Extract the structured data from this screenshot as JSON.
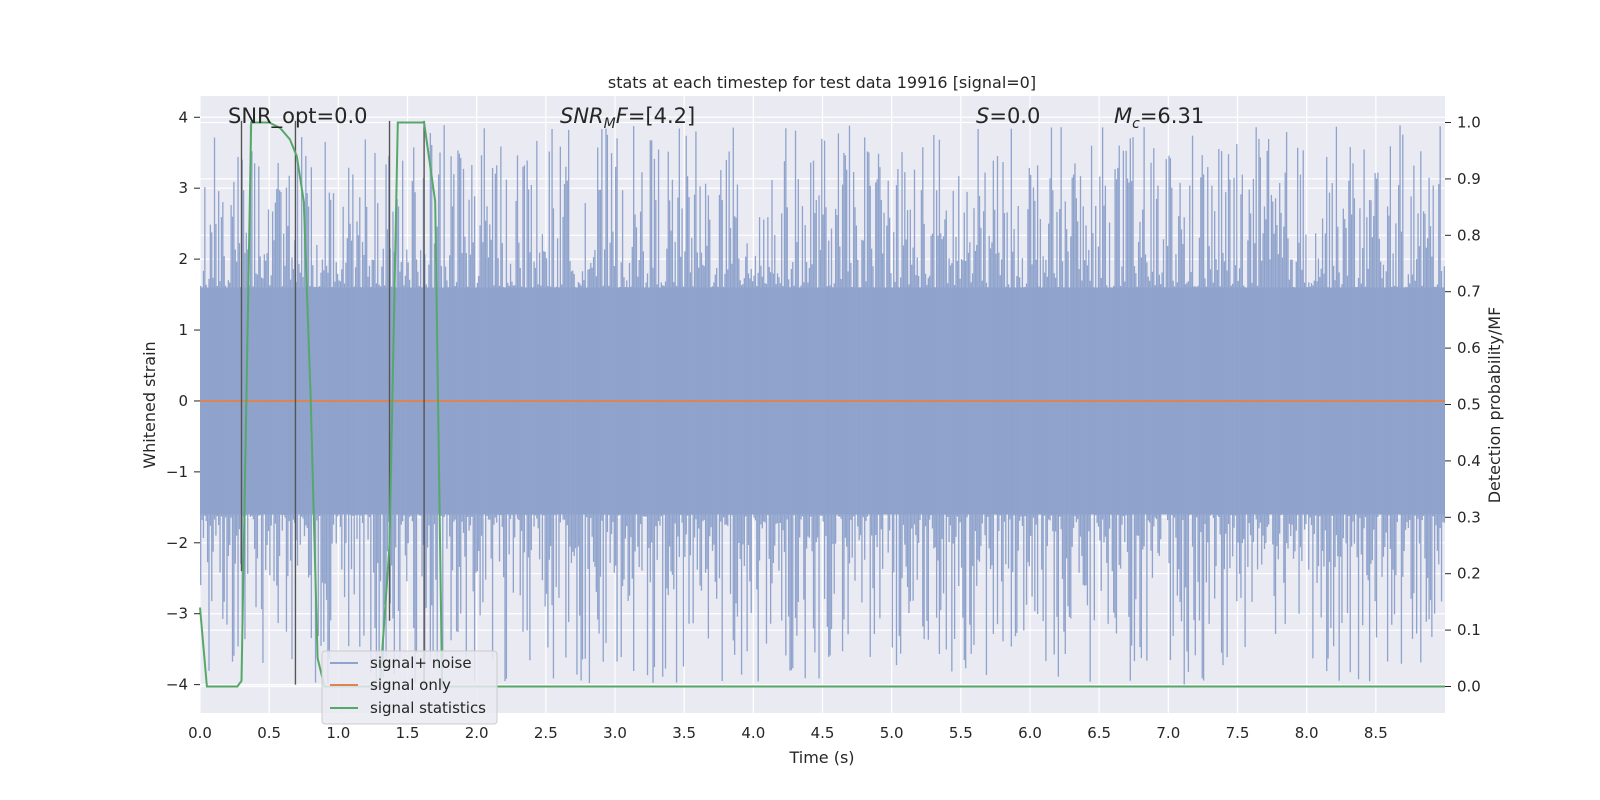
{
  "chart_data": {
    "type": "line",
    "title": "stats at each timestep for test data 19916 [signal=0]",
    "xlabel": "Time (s)",
    "ylabel": "Whitened strain",
    "y2label": "Detection probability/MF",
    "xlim": [
      0.0,
      9.0
    ],
    "ylim": [
      -4.4,
      4.3
    ],
    "y2lim": [
      -0.047,
      1.047
    ],
    "xticks": [
      "0.0",
      "0.5",
      "1.0",
      "1.5",
      "2.0",
      "2.5",
      "3.0",
      "3.5",
      "4.0",
      "4.5",
      "5.0",
      "5.5",
      "6.0",
      "6.5",
      "7.0",
      "7.5",
      "8.0",
      "8.5"
    ],
    "yticks": [
      "4",
      "3",
      "2",
      "1",
      "0",
      "−1",
      "−2",
      "−3",
      "−4"
    ],
    "y2ticks": [
      "1.0",
      "0.9",
      "0.8",
      "0.7",
      "0.6",
      "0.5",
      "0.4",
      "0.3",
      "0.2",
      "0.1",
      "0.0"
    ],
    "grid": true,
    "legend_position": "lower-left",
    "annotations": [
      {
        "key": "snr_opt",
        "text": "SNR_opt=0.0"
      },
      {
        "key": "snr_mf",
        "text": "SNR_MF=[4.2]"
      },
      {
        "key": "s",
        "text": "S=0.0"
      },
      {
        "key": "mc",
        "text": "M_c=6.31"
      }
    ],
    "series": [
      {
        "name": "signal+ noise",
        "color": "#8fa3cc",
        "kind": "noise",
        "typical_band": [
          -1.6,
          1.6
        ],
        "min_peak": -4.0,
        "max_peak": 3.9
      },
      {
        "name": "signal only",
        "color": "#dd8452",
        "kind": "constant",
        "value": 0.0
      },
      {
        "name": "signal statistics",
        "color": "#55a868",
        "axis": "right",
        "x": [
          0.0,
          0.05,
          0.1,
          0.2,
          0.27,
          0.3,
          0.37,
          0.5,
          0.58,
          0.65,
          0.7,
          0.75,
          0.8,
          0.85,
          0.9,
          1.0,
          1.3,
          1.37,
          1.43,
          1.62,
          1.7,
          1.75,
          2.0,
          9.0
        ],
        "values": [
          0.14,
          0.0,
          0.0,
          0.0,
          0.0,
          0.01,
          1.0,
          1.0,
          0.99,
          0.97,
          0.94,
          0.86,
          0.51,
          0.05,
          0.0,
          0.0,
          0.0,
          0.25,
          1.0,
          1.0,
          0.86,
          0.0,
          0.0,
          0.0
        ]
      }
    ],
    "vertical_markers": [
      {
        "x": 0.3,
        "y_top": 3.95,
        "y_bottom": -2.4
      },
      {
        "x": 0.69,
        "y_top": 3.95,
        "y_bottom": -4.0
      },
      {
        "x": 1.37,
        "y_top": 3.95,
        "y_bottom": -3.1
      },
      {
        "x": 1.62,
        "y_top": 3.95,
        "y_bottom": -4.0
      }
    ]
  }
}
